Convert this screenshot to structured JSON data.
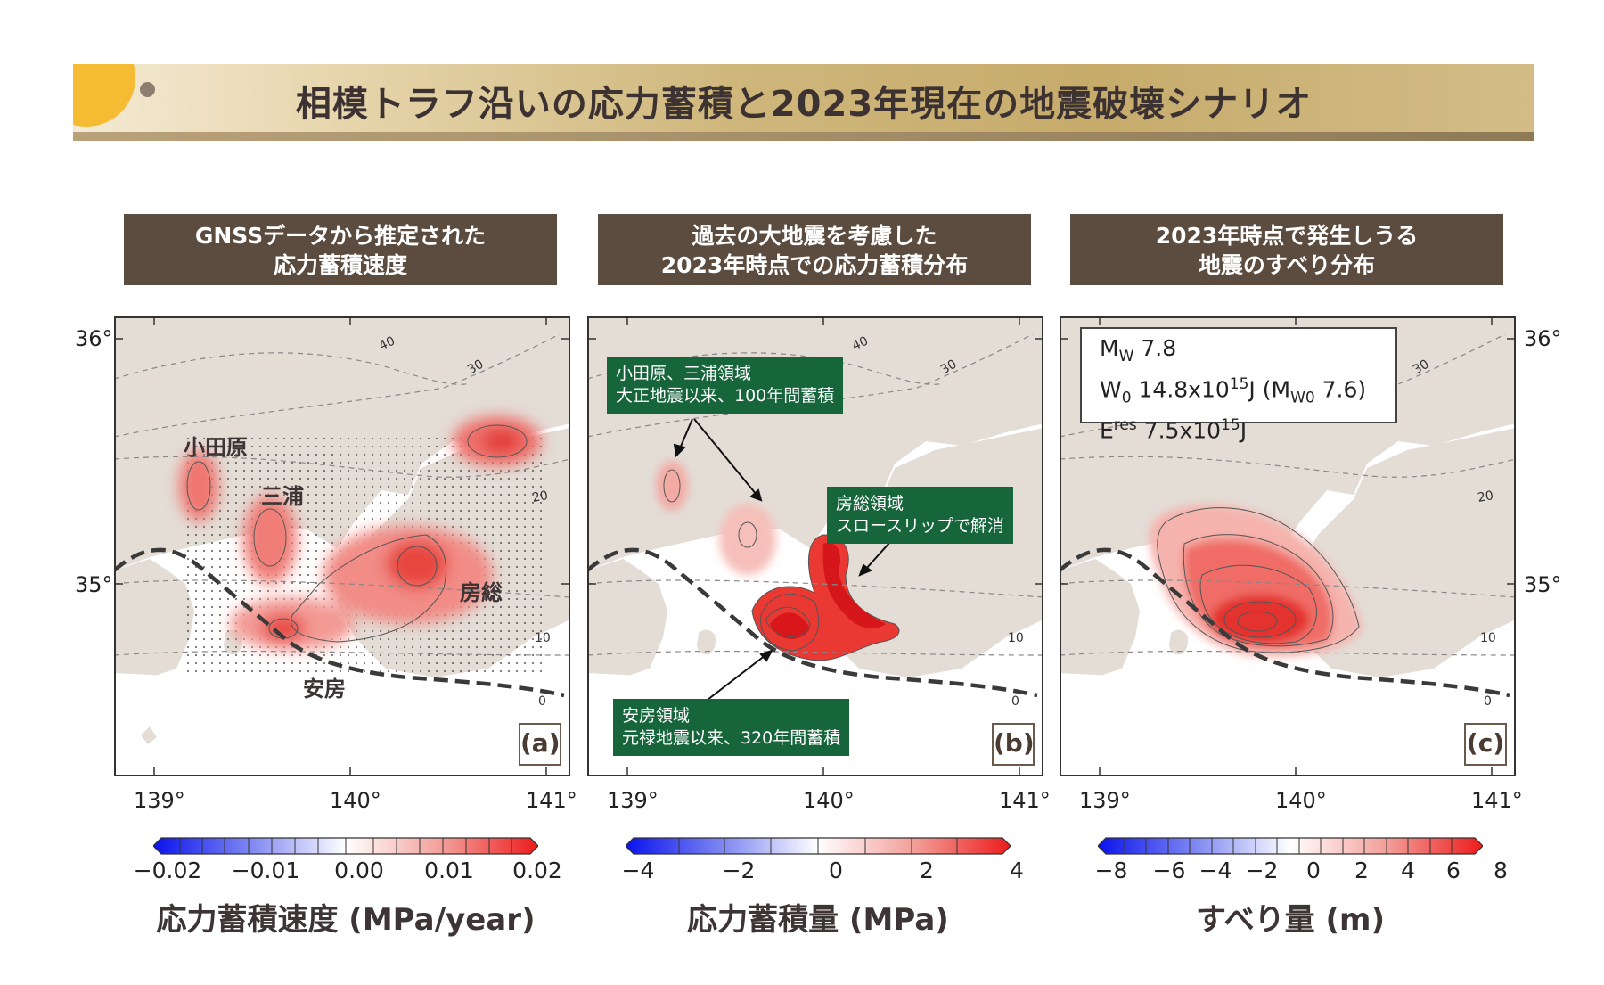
{
  "title": "相模トラフ沿いの応力蓄積と2023年現在の地震破壊シナリオ",
  "accent_colors": {
    "banner_gold": "#c6ab6b",
    "caption_brown": "#5c4c3f",
    "callout_green": "#16653b",
    "trough_line": "#3a3a3a"
  },
  "panels": [
    {
      "caption": [
        "GNSSデータから推定された",
        "応力蓄積速度"
      ],
      "label": "(a)",
      "regions": [
        "小田原",
        "三浦",
        "房総",
        "安房"
      ],
      "colorbar": {
        "ticks": [
          "−0.02",
          "−0.01",
          "0.00",
          "0.01",
          "0.02"
        ],
        "title": "応力蓄積速度 (MPa/year)"
      }
    },
    {
      "caption": [
        "過去の大地震を考慮した",
        "2023年時点での応力蓄積分布"
      ],
      "label": "(b)",
      "callouts": {
        "odawara": [
          "小田原、三浦領域",
          "大正地震以来、100年間蓄積"
        ],
        "boso": [
          "房総領域",
          "スロースリップで解消"
        ],
        "awa": [
          "安房領域",
          "元禄地震以来、320年間蓄積"
        ]
      },
      "colorbar": {
        "ticks": [
          "−4",
          "−2",
          "0",
          "2",
          "4"
        ],
        "title": "応力蓄積量 (MPa)"
      }
    },
    {
      "caption": [
        "2023年時点で発生しうる",
        "地震のすべり分布"
      ],
      "label": "(c)",
      "info": {
        "mw_m": "M",
        "mw_sub": "W",
        "mw_val": " 7.8",
        "w0_w": "W",
        "w0_sub": "0",
        "w0_val": " 14.8x10",
        "w0_sup": "15",
        "w0_tail": "J (M",
        "w0_msub": "W0",
        "w0_mval": " 7.6)",
        "e_e": "E",
        "e_sup": "res",
        "e_val": " 7.5x10",
        "e_sup2": "15",
        "e_tail": "J"
      },
      "colorbar": {
        "ticks": [
          "−8",
          "−6",
          "−4",
          "−2",
          "0",
          "2",
          "4",
          "6",
          "8"
        ],
        "title": "すべり量 (m)"
      }
    }
  ],
  "map_axes": {
    "lon_ticks": [
      "139°",
      "140°",
      "141°"
    ],
    "lat_ticks": [
      "36°",
      "35°"
    ],
    "depth_contours": [
      "40",
      "30",
      "20",
      "10",
      "0"
    ]
  }
}
